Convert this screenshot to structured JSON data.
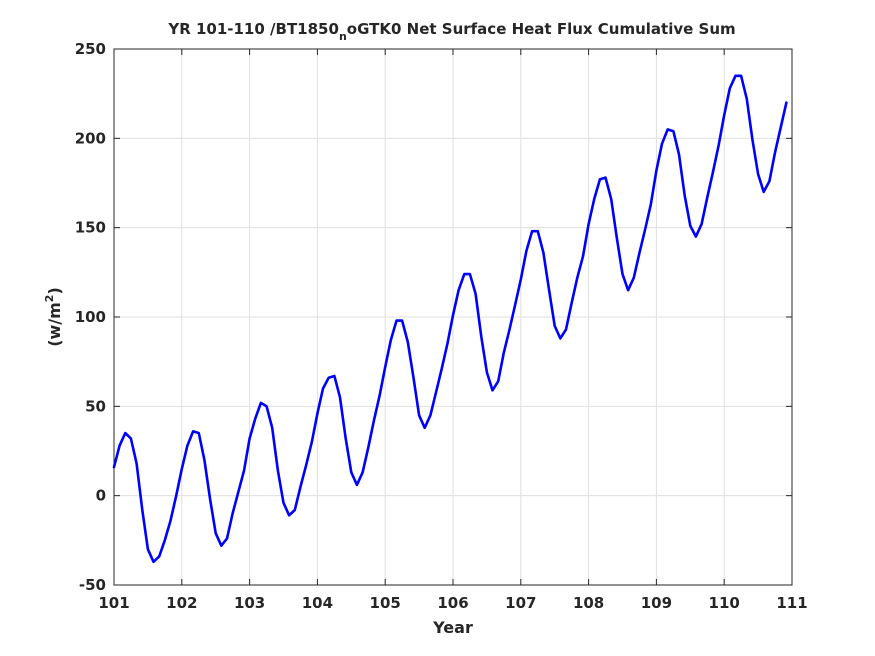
{
  "chart_data": {
    "type": "line",
    "title_main": "YR 101-110 /BT1850",
    "title_sub": "n",
    "title_rest": "oGTK0 Net Surface Heat Flux  Cumulative Sum",
    "xlabel": "Year",
    "ylabel_base": "(w/m",
    "ylabel_sup": "2",
    "ylabel_close": ")",
    "xlim": [
      101,
      111
    ],
    "ylim": [
      -50,
      250
    ],
    "xticks": [
      101,
      102,
      103,
      104,
      105,
      106,
      107,
      108,
      109,
      110,
      111
    ],
    "yticks": [
      -50,
      0,
      50,
      100,
      150,
      200,
      250
    ],
    "grid": true,
    "line_color": "#0000ff",
    "series": [
      {
        "x": [
          101.0,
          101.083,
          101.167,
          101.25,
          101.333,
          101.417,
          101.5,
          101.583,
          101.667,
          101.75,
          101.833,
          101.917,
          102.0,
          102.083,
          102.167,
          102.25,
          102.333,
          102.417,
          102.5,
          102.583,
          102.667,
          102.75,
          102.833,
          102.917,
          103.0,
          103.083,
          103.167,
          103.25,
          103.333,
          103.417,
          103.5,
          103.583,
          103.667,
          103.75,
          103.833,
          103.917,
          104.0,
          104.083,
          104.167,
          104.25,
          104.333,
          104.417,
          104.5,
          104.583,
          104.667,
          104.75,
          104.833,
          104.917,
          105.0,
          105.083,
          105.167,
          105.25,
          105.333,
          105.417,
          105.5,
          105.583,
          105.667,
          105.75,
          105.833,
          105.917,
          106.0,
          106.083,
          106.167,
          106.25,
          106.333,
          106.417,
          106.5,
          106.583,
          106.667,
          106.75,
          106.833,
          106.917,
          107.0,
          107.083,
          107.167,
          107.25,
          107.333,
          107.417,
          107.5,
          107.583,
          107.667,
          107.75,
          107.833,
          107.917,
          108.0,
          108.083,
          108.167,
          108.25,
          108.333,
          108.417,
          108.5,
          108.583,
          108.667,
          108.75,
          108.833,
          108.917,
          109.0,
          109.083,
          109.167,
          109.25,
          109.333,
          109.417,
          109.5,
          109.583,
          109.667,
          109.75,
          109.833,
          109.917,
          110.0,
          110.083,
          110.167,
          110.25,
          110.333,
          110.417,
          110.5,
          110.583,
          110.667,
          110.75,
          110.833,
          110.917
        ],
        "y": [
          16,
          28,
          35,
          32,
          18,
          -8,
          -30,
          -37,
          -34,
          -25,
          -14,
          0,
          15,
          28,
          36,
          35,
          20,
          -2,
          -21,
          -28,
          -24,
          -10,
          2,
          14,
          32,
          43,
          52,
          50,
          38,
          14,
          -4,
          -11,
          -8,
          5,
          17,
          30,
          46,
          60,
          66,
          67,
          55,
          32,
          13,
          6,
          13,
          27,
          42,
          56,
          72,
          87,
          98,
          98,
          86,
          66,
          45,
          38,
          45,
          58,
          71,
          85,
          101,
          115,
          124,
          124,
          113,
          89,
          69,
          59,
          64,
          80,
          93,
          107,
          121,
          137,
          148,
          148,
          136,
          115,
          95,
          88,
          93,
          108,
          122,
          134,
          152,
          166,
          177,
          178,
          166,
          144,
          124,
          115,
          122,
          136,
          149,
          163,
          182,
          197,
          205,
          204,
          191,
          168,
          151,
          145,
          152,
          167,
          181,
          196,
          213,
          228,
          235,
          235,
          222,
          199,
          180,
          170,
          176,
          192,
          206,
          220
        ]
      }
    ]
  }
}
